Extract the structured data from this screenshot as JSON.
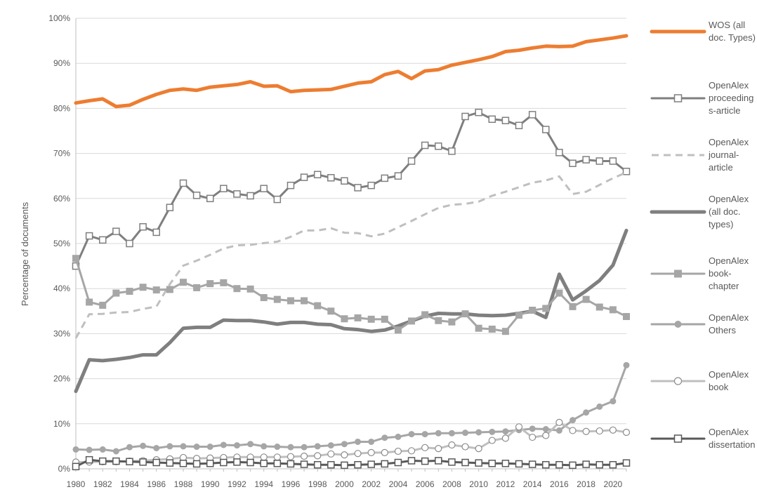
{
  "chart_data": {
    "type": "line",
    "title": "",
    "xlabel": "",
    "ylabel": "Percentage of documents",
    "x": [
      1980,
      1981,
      1982,
      1983,
      1984,
      1985,
      1986,
      1987,
      1988,
      1989,
      1990,
      1991,
      1992,
      1993,
      1994,
      1995,
      1996,
      1997,
      1998,
      1999,
      2000,
      2001,
      2002,
      2003,
      2004,
      2005,
      2006,
      2007,
      2008,
      2009,
      2010,
      2011,
      2012,
      2013,
      2014,
      2015,
      2016,
      2017,
      2018,
      2019,
      2020,
      2021
    ],
    "xlim": [
      1980,
      2021
    ],
    "x_tick_labels": [
      "1980",
      "1982",
      "1984",
      "1986",
      "1988",
      "1990",
      "1992",
      "1994",
      "1996",
      "1998",
      "2000",
      "2002",
      "2004",
      "2006",
      "2008",
      "2010",
      "2012",
      "2014",
      "2016",
      "2018",
      "2020"
    ],
    "ylim": [
      0,
      100
    ],
    "y_tick_labels": [
      "0%",
      "10%",
      "20%",
      "30%",
      "40%",
      "50%",
      "60%",
      "70%",
      "80%",
      "90%",
      "100%"
    ],
    "grid": "horizontal",
    "legend_position": "right",
    "series": [
      {
        "name": "WOS (all doc. Types)",
        "legend_lines": [
          "WOS (all",
          "doc. Types)"
        ],
        "color": "#ed7d31",
        "style": "thick-solid",
        "marker": "none",
        "values": [
          81.2,
          81.7,
          82.1,
          80.4,
          80.7,
          82.0,
          83.1,
          84.0,
          84.3,
          84.0,
          84.7,
          85.0,
          85.3,
          85.9,
          84.9,
          85.0,
          83.7,
          84.0,
          84.1,
          84.2,
          84.9,
          85.6,
          85.9,
          87.5,
          88.2,
          86.6,
          88.3,
          88.6,
          89.6,
          90.2,
          90.8,
          91.5,
          92.6,
          92.9,
          93.4,
          93.8,
          93.7,
          93.8,
          94.8,
          95.2,
          95.6,
          96.1
        ]
      },
      {
        "name": "OpenAlex proceedings-article",
        "legend_lines": [
          "OpenAlex",
          "proceeding",
          "s-article"
        ],
        "color": "#7f7f7f",
        "style": "solid",
        "marker": "square-open",
        "values": [
          45.0,
          51.7,
          50.8,
          52.7,
          50.0,
          53.7,
          52.5,
          58.0,
          63.4,
          60.7,
          60.0,
          62.2,
          61.0,
          60.6,
          62.2,
          59.8,
          62.9,
          64.7,
          65.3,
          64.6,
          63.9,
          62.4,
          62.9,
          64.5,
          65.0,
          68.3,
          71.8,
          71.6,
          70.5,
          78.2,
          79.1,
          77.6,
          77.3,
          76.2,
          78.6,
          75.3,
          70.2,
          67.8,
          68.6,
          68.3,
          68.3,
          66.0
        ]
      },
      {
        "name": "OpenAlex journal-article",
        "legend_lines": [
          "OpenAlex",
          "journal-",
          "article"
        ],
        "color": "#bfbfbf",
        "style": "dashed",
        "marker": "none",
        "values": [
          29.0,
          34.3,
          34.4,
          34.7,
          34.8,
          35.5,
          36.0,
          41.0,
          45.1,
          46.2,
          47.5,
          48.9,
          49.6,
          49.7,
          50.1,
          50.4,
          51.5,
          52.9,
          52.9,
          53.4,
          52.4,
          52.3,
          51.6,
          52.2,
          53.6,
          55.0,
          56.5,
          57.9,
          58.6,
          58.8,
          59.3,
          60.6,
          61.5,
          62.5,
          63.5,
          64.0,
          64.9,
          61.0,
          61.5,
          63.0,
          64.5,
          65.8
        ]
      },
      {
        "name": "OpenAlex (all doc. types)",
        "legend_lines": [
          "OpenAlex",
          "(all doc.",
          "types)"
        ],
        "color": "#7f7f7f",
        "style": "thick-solid",
        "marker": "none",
        "values": [
          17.2,
          24.2,
          24.0,
          24.3,
          24.7,
          25.3,
          25.3,
          28.0,
          31.2,
          31.4,
          31.4,
          33.0,
          32.9,
          32.9,
          32.6,
          32.1,
          32.5,
          32.5,
          32.1,
          32.0,
          31.1,
          30.9,
          30.5,
          30.8,
          31.7,
          32.8,
          33.9,
          34.5,
          34.4,
          34.4,
          34.1,
          34.0,
          34.1,
          34.5,
          35.0,
          33.6,
          43.2,
          37.5,
          39.5,
          41.8,
          45.2,
          52.9
        ]
      },
      {
        "name": "OpenAlex book-chapter",
        "legend_lines": [
          "OpenAlex",
          "book-",
          "chapter"
        ],
        "color": "#a6a6a6",
        "style": "solid",
        "marker": "square-filled",
        "values": [
          46.7,
          37.0,
          36.3,
          39.0,
          39.4,
          40.3,
          39.7,
          39.8,
          41.4,
          40.2,
          41.1,
          41.3,
          40.0,
          39.9,
          38.0,
          37.6,
          37.3,
          37.3,
          36.2,
          35.0,
          33.3,
          33.5,
          33.2,
          33.2,
          30.8,
          32.8,
          34.2,
          32.9,
          32.6,
          34.4,
          31.2,
          31.0,
          30.5,
          34.1,
          35.2,
          35.6,
          39.0,
          36.0,
          37.6,
          35.9,
          35.3,
          33.8
        ]
      },
      {
        "name": "OpenAlex Others",
        "legend_lines": [
          "OpenAlex",
          "Others"
        ],
        "color": "#a6a6a6",
        "style": "solid",
        "marker": "circle-filled",
        "values": [
          4.3,
          4.2,
          4.3,
          3.9,
          4.8,
          5.1,
          4.6,
          5.0,
          5.0,
          4.9,
          4.9,
          5.3,
          5.2,
          5.5,
          5.0,
          4.9,
          4.8,
          4.8,
          5.0,
          5.2,
          5.5,
          6.0,
          6.0,
          6.9,
          7.1,
          7.7,
          7.7,
          7.9,
          7.9,
          8.0,
          8.1,
          8.2,
          8.3,
          8.6,
          8.9,
          8.8,
          8.5,
          10.8,
          12.5,
          13.8,
          15.0,
          23.0
        ]
      },
      {
        "name": "OpenAlex book",
        "legend_lines": [
          "OpenAlex",
          "book"
        ],
        "color": "#bfbfbf",
        "style": "solid",
        "marker": "circle-open",
        "values": [
          1.5,
          1.5,
          1.6,
          1.6,
          1.7,
          1.8,
          2.0,
          2.2,
          2.5,
          2.3,
          2.4,
          2.5,
          2.6,
          2.6,
          2.6,
          2.6,
          2.7,
          2.8,
          2.9,
          3.3,
          3.1,
          3.4,
          3.6,
          3.6,
          3.9,
          4.0,
          4.7,
          4.5,
          5.3,
          4.9,
          4.5,
          6.3,
          6.8,
          9.3,
          7.0,
          7.4,
          10.3,
          8.5,
          8.3,
          8.4,
          8.6,
          8.1
        ]
      },
      {
        "name": "OpenAlex dissertation",
        "legend_lines": [
          "OpenAlex",
          "dissertation"
        ],
        "color": "#595959",
        "style": "solid",
        "marker": "square-open",
        "values": [
          0.5,
          2.0,
          1.7,
          1.7,
          1.6,
          1.5,
          1.4,
          1.3,
          1.2,
          1.1,
          1.2,
          1.4,
          1.5,
          1.4,
          1.2,
          1.2,
          1.1,
          1.0,
          0.9,
          0.9,
          0.8,
          0.9,
          1.0,
          1.1,
          1.4,
          1.8,
          1.7,
          1.8,
          1.5,
          1.4,
          1.3,
          1.2,
          1.2,
          1.1,
          1.0,
          0.9,
          0.9,
          0.8,
          1.0,
          0.9,
          0.9,
          1.3
        ]
      }
    ]
  }
}
